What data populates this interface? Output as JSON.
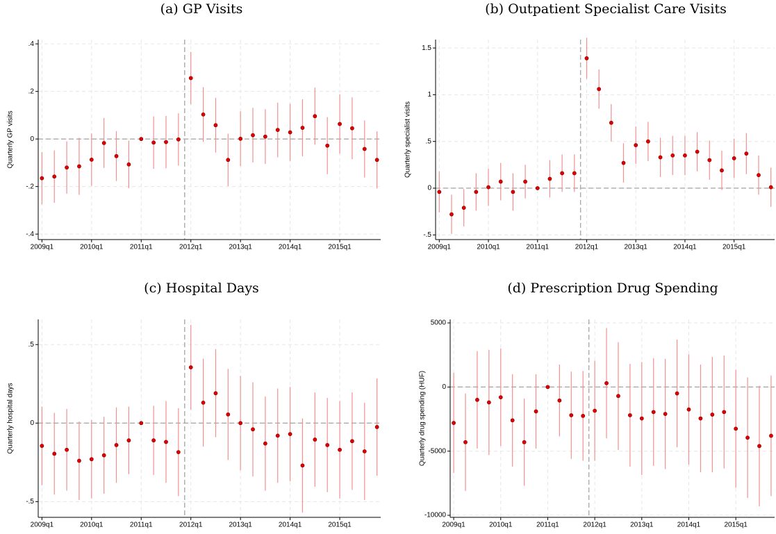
{
  "chart_data": [
    {
      "type": "errorbar",
      "title": "(a) GP Visits",
      "ylabel": "Quarterly GP visits",
      "categories": [
        "2009q1",
        null,
        null,
        null,
        "2010q1",
        null,
        null,
        null,
        "2011q1",
        null,
        null,
        null,
        "2012q1",
        null,
        null,
        null,
        "2013q1",
        null,
        null,
        null,
        "2014q1",
        null,
        null,
        null,
        "2015q1",
        null,
        null,
        null
      ],
      "values": [
        -0.165,
        -0.158,
        -0.12,
        -0.115,
        -0.087,
        -0.017,
        -0.072,
        -0.107,
        0,
        -0.015,
        -0.013,
        -0.002,
        0.256,
        0.103,
        0.058,
        -0.088,
        0.001,
        0.016,
        0.01,
        0.038,
        0.028,
        0.047,
        0.096,
        -0.028,
        0.063,
        0.045,
        -0.042,
        -0.088
      ],
      "errors": [
        0.11,
        0.11,
        0.11,
        0.12,
        0.11,
        0.105,
        0.105,
        0.1,
        0,
        0.11,
        0.11,
        0.11,
        0.11,
        0.115,
        0.115,
        0.11,
        0.115,
        0.115,
        0.115,
        0.115,
        0.12,
        0.12,
        0.12,
        0.12,
        0.125,
        0.13,
        0.12,
        0.12
      ],
      "ylim": [
        -0.423,
        0.418
      ],
      "yticks": [
        {
          "value": -0.4,
          "label": "-.4"
        },
        {
          "value": -0.2,
          "label": "-.2"
        },
        0,
        {
          "value": 0.2,
          "label": ".2"
        },
        {
          "value": 0.4,
          "label": ".4"
        }
      ],
      "xline": 11.5,
      "yline": 0,
      "grid": true,
      "color": "#e00000",
      "bar_color": "#f29090"
    },
    {
      "type": "errorbar",
      "title": "(b) Outpatient Specialist Care Visits",
      "ylabel": "Quarterly specialist visits",
      "categories": [
        "2009q1",
        null,
        null,
        null,
        "2010q1",
        null,
        null,
        null,
        "2011q1",
        null,
        null,
        null,
        "2012q1",
        null,
        null,
        null,
        "2013q1",
        null,
        null,
        null,
        "2014q1",
        null,
        null,
        null,
        "2015q1",
        null,
        null,
        null
      ],
      "values": [
        -0.04,
        -0.28,
        -0.21,
        -0.04,
        0.01,
        0.07,
        -0.04,
        0.07,
        0,
        0.1,
        0.16,
        0.16,
        1.39,
        1.06,
        0.7,
        0.27,
        0.46,
        0.5,
        0.33,
        0.35,
        0.35,
        0.39,
        0.3,
        0.19,
        0.32,
        0.37,
        0.14,
        0.01
      ],
      "errors": [
        0.22,
        0.21,
        0.2,
        0.2,
        0.2,
        0.2,
        0.2,
        0.18,
        0,
        0.2,
        0.2,
        0.2,
        0.22,
        0.21,
        0.2,
        0.21,
        0.2,
        0.21,
        0.21,
        0.21,
        0.21,
        0.21,
        0.21,
        0.21,
        0.21,
        0.22,
        0.21,
        0.21
      ],
      "ylim": [
        -0.55,
        1.59
      ],
      "yticks": [
        {
          "value": -0.5,
          "label": "-.5"
        },
        0,
        {
          "value": 0.5,
          "label": ".5"
        },
        1,
        1.5
      ],
      "xline": 11.5,
      "yline": 0,
      "grid": true,
      "color": "#e00000",
      "bar_color": "#f29090"
    },
    {
      "type": "errorbar",
      "title": "(c) Hospital Days",
      "ylabel": "Quarterly hospital days",
      "categories": [
        "2009q1",
        null,
        null,
        null,
        "2010q1",
        null,
        null,
        null,
        "2011q1",
        null,
        null,
        null,
        "2012q1",
        null,
        null,
        null,
        "2013q1",
        null,
        null,
        null,
        "2014q1",
        null,
        null,
        null,
        "2015q1",
        null,
        null,
        null
      ],
      "values": [
        -0.145,
        -0.195,
        -0.17,
        -0.24,
        -0.23,
        -0.205,
        -0.14,
        -0.11,
        0,
        -0.11,
        -0.12,
        -0.185,
        0.355,
        0.13,
        0.19,
        0.055,
        0.0,
        -0.04,
        -0.13,
        -0.08,
        -0.07,
        -0.27,
        -0.105,
        -0.14,
        -0.17,
        -0.115,
        -0.18,
        -0.025
      ],
      "errors": [
        0.25,
        0.26,
        0.26,
        0.25,
        0.25,
        0.245,
        0.24,
        0.215,
        0,
        0.22,
        0.26,
        0.28,
        0.27,
        0.28,
        0.28,
        0.29,
        0.3,
        0.3,
        0.3,
        0.3,
        0.3,
        0.3,
        0.3,
        0.3,
        0.31,
        0.31,
        0.31,
        0.31
      ],
      "ylim": [
        -0.6,
        0.66
      ],
      "yticks": [
        {
          "value": -0.5,
          "label": "-.5"
        },
        0,
        {
          "value": 0.5,
          "label": ".5"
        }
      ],
      "xline": 11.5,
      "yline": 0,
      "grid": true,
      "color": "#e00000",
      "bar_color": "#f29090"
    },
    {
      "type": "errorbar",
      "title": "(d) Prescription Drug Spending",
      "ylabel": "Quarterly drug spending (HUF)",
      "categories": [
        "2009q1",
        null,
        null,
        null,
        "2010q1",
        null,
        null,
        null,
        "2011q1",
        null,
        null,
        null,
        "2012q1",
        null,
        null,
        null,
        "2013q1",
        null,
        null,
        null,
        "2014q1",
        null,
        null,
        null,
        "2015q1",
        null,
        null,
        null
      ],
      "values": [
        -2800,
        -4300,
        -1000,
        -1200,
        -800,
        -2600,
        -4300,
        -1900,
        0,
        -1050,
        -2200,
        -2250,
        -1850,
        300,
        -700,
        -2200,
        -2450,
        -1950,
        -2100,
        -500,
        -1750,
        -2450,
        -2150,
        -1950,
        -3250,
        -3950,
        -4600,
        -3800
      ],
      "errors": [
        3900,
        3800,
        3800,
        4100,
        3800,
        3600,
        3400,
        2900,
        0,
        2800,
        3400,
        3500,
        3900,
        4300,
        4200,
        4000,
        4400,
        4200,
        4300,
        4200,
        4300,
        4200,
        4500,
        4400,
        4600,
        4700,
        4700,
        4700
      ],
      "ylim": [
        -10160,
        5270
      ],
      "yticks": [
        -10000,
        -5000,
        0,
        5000
      ],
      "xline": 11.5,
      "yline": 0,
      "grid": true,
      "color": "#e00000",
      "bar_color": "#f29090"
    }
  ]
}
